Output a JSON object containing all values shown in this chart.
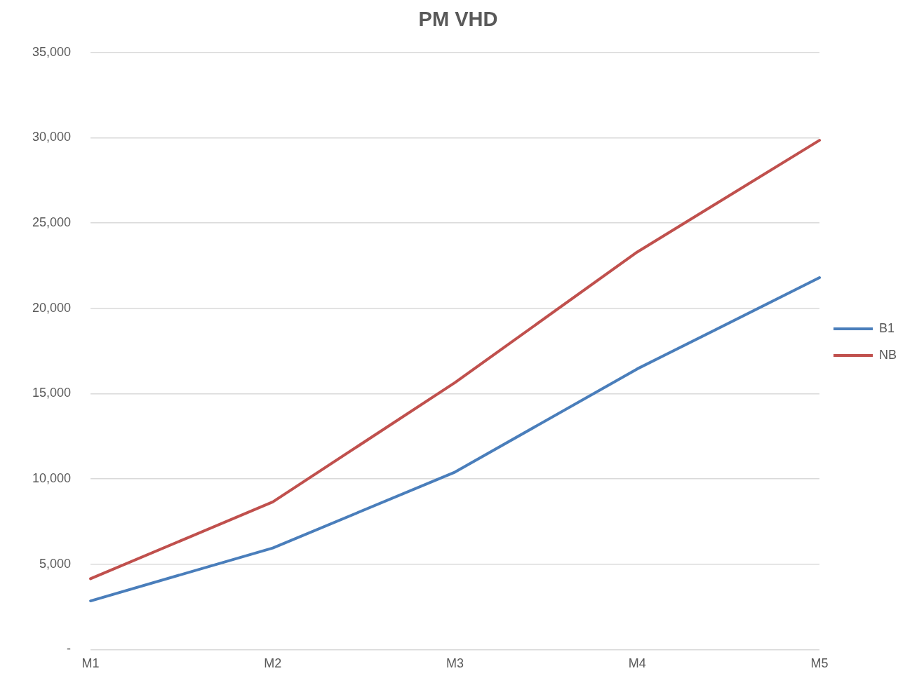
{
  "chart_data": {
    "type": "line",
    "title": "PM VHD",
    "categories": [
      "M1",
      "M2",
      "M3",
      "M4",
      "M5"
    ],
    "series": [
      {
        "name": "B1",
        "color": "#4a7ebb",
        "values": [
          2850,
          5950,
          10400,
          16450,
          21800
        ]
      },
      {
        "name": "NB",
        "color": "#c0504d",
        "values": [
          4150,
          8650,
          15650,
          23300,
          29850
        ]
      }
    ],
    "ylim": [
      0,
      35000
    ],
    "yticks": [
      {
        "value": 0,
        "label": "-"
      },
      {
        "value": 5000,
        "label": "5,000"
      },
      {
        "value": 10000,
        "label": "10,000"
      },
      {
        "value": 15000,
        "label": "15,000"
      },
      {
        "value": 20000,
        "label": "20,000"
      },
      {
        "value": 25000,
        "label": "25,000"
      },
      {
        "value": 30000,
        "label": "30,000"
      },
      {
        "value": 35000,
        "label": "35,000"
      }
    ],
    "grid": "y",
    "legend": "right",
    "marker": "none",
    "line_style": "solid"
  }
}
